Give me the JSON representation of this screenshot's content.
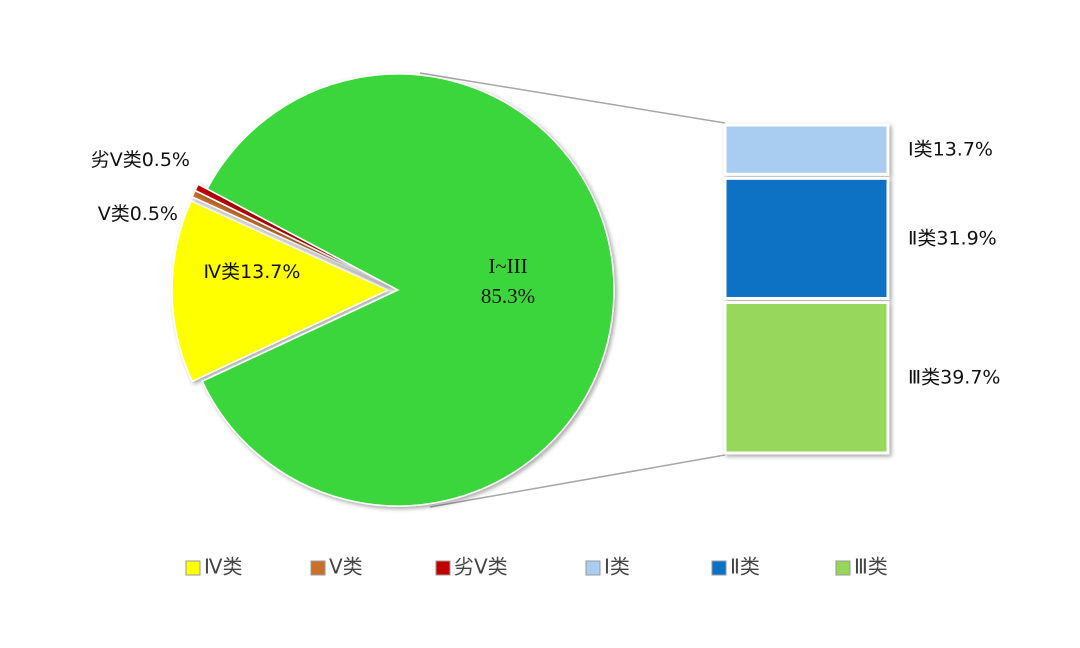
{
  "chart_data": {
    "type": "bar-of-pie",
    "pie": {
      "categories": [
        "Ⅳ类",
        "Ⅴ类",
        "劣Ⅴ类",
        "I~III"
      ],
      "values": [
        13.7,
        0.5,
        0.5,
        85.3
      ],
      "value_labels": [
        "13.7%",
        "0.5%",
        "0.5%",
        "85.3%"
      ],
      "colors": [
        "#ffff00",
        "#c8702c",
        "#c00000",
        "#3ad63a"
      ]
    },
    "bar": {
      "categories": [
        "Ⅰ类",
        "Ⅱ类",
        "Ⅲ类"
      ],
      "values": [
        13.7,
        31.9,
        39.7
      ],
      "value_labels": [
        "13.7%",
        "31.9%",
        "39.7%"
      ],
      "colors": [
        "#a9cdf0",
        "#0a72c4",
        "#97d85c"
      ]
    },
    "legend": "bottom"
  }
}
